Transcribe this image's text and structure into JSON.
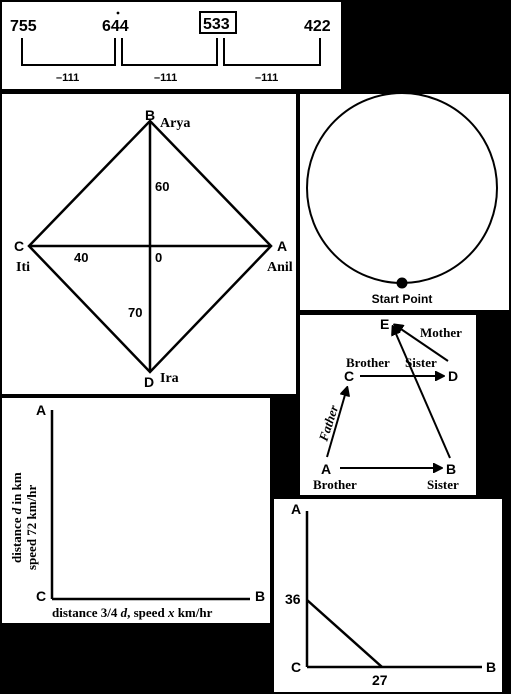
{
  "number_line": {
    "values": [
      "755",
      "644",
      "533",
      "422"
    ],
    "highlighted": "533",
    "differences": [
      "–111",
      "–111",
      "–111"
    ]
  },
  "square_diagram": {
    "vertex_b": "B",
    "name_b": "Arya",
    "vertex_a": "A",
    "name_a": "Anil",
    "vertex_c": "C",
    "name_c": "Iti",
    "vertex_d": "D",
    "name_d": "Ira",
    "center": "0",
    "dist_b": "60",
    "dist_c": "40",
    "dist_d": "70"
  },
  "circle_diagram": {
    "label": "Start Point"
  },
  "relation_diagram": {
    "node_e": "E",
    "node_c": "C",
    "node_d": "D",
    "node_a": "A",
    "node_b": "B",
    "label_mother": "Mother",
    "label_brother_top": "Brother",
    "label_sister_top": "Sister",
    "label_father": "Father",
    "label_brother_bottom": "Brother",
    "label_sister_bottom": "Sister"
  },
  "graph_speed": {
    "label_a": "A",
    "label_c": "C",
    "label_b": "B",
    "y_line1_pre": "distance ",
    "y_line1_var": "d",
    "y_line1_post": " in km",
    "y_line2": "speed 72 km/hr",
    "x_pre": "distance 3/4 ",
    "x_var": "d",
    "x_mid": ", speed ",
    "x_var2": "x",
    "x_post": " km/hr"
  },
  "graph_line": {
    "label_a": "A",
    "label_c": "C",
    "label_b": "B",
    "y_value": "36",
    "x_value": "27"
  }
}
